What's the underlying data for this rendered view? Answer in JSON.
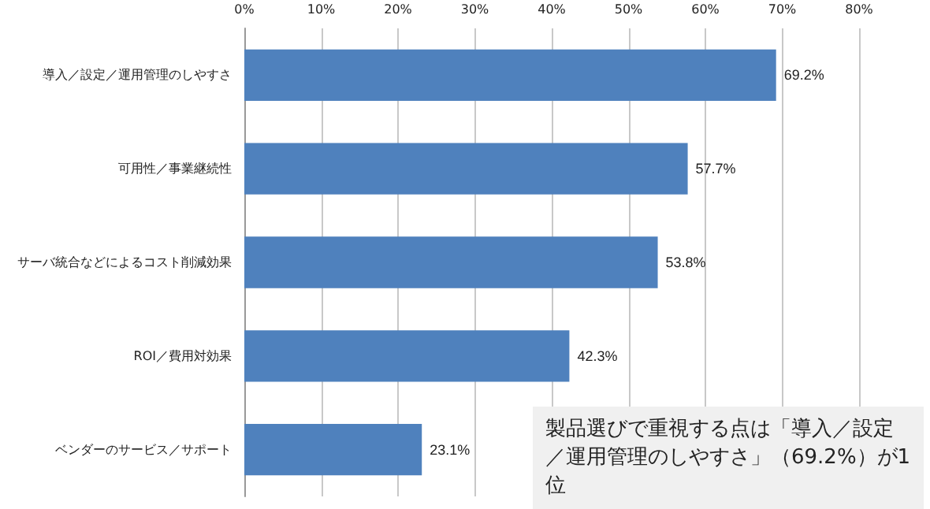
{
  "chart_data": {
    "type": "bar",
    "orientation": "horizontal",
    "categories": [
      "導入／設定／運用管理のしやすさ",
      "可用性／事業継続性",
      "サーバ統合などによるコスト削減効果",
      "ROI／費用対効果",
      "ベンダーのサービス／サポート"
    ],
    "values": [
      69.2,
      57.7,
      53.8,
      42.3,
      23.1
    ],
    "value_labels": [
      "69.2%",
      "57.7%",
      "53.8%",
      "42.3%",
      "23.1%"
    ],
    "color": "#4f81bd",
    "xlim": [
      0,
      80
    ],
    "xticks": [
      {
        "value": 0,
        "label": "0%"
      },
      {
        "value": 10,
        "label": "10%"
      },
      {
        "value": 20,
        "label": "20%"
      },
      {
        "value": 30,
        "label": "30%"
      },
      {
        "value": 40,
        "label": "40%"
      },
      {
        "value": 50,
        "label": "50%"
      },
      {
        "value": 60,
        "label": "60%"
      },
      {
        "value": 70,
        "label": "70%"
      },
      {
        "value": 80,
        "label": "80%"
      }
    ],
    "grid": "x",
    "annotations": [
      "製品選びで重視する点は「導入／設定／運用管理のしやすさ」（69.2%）が1位"
    ]
  }
}
